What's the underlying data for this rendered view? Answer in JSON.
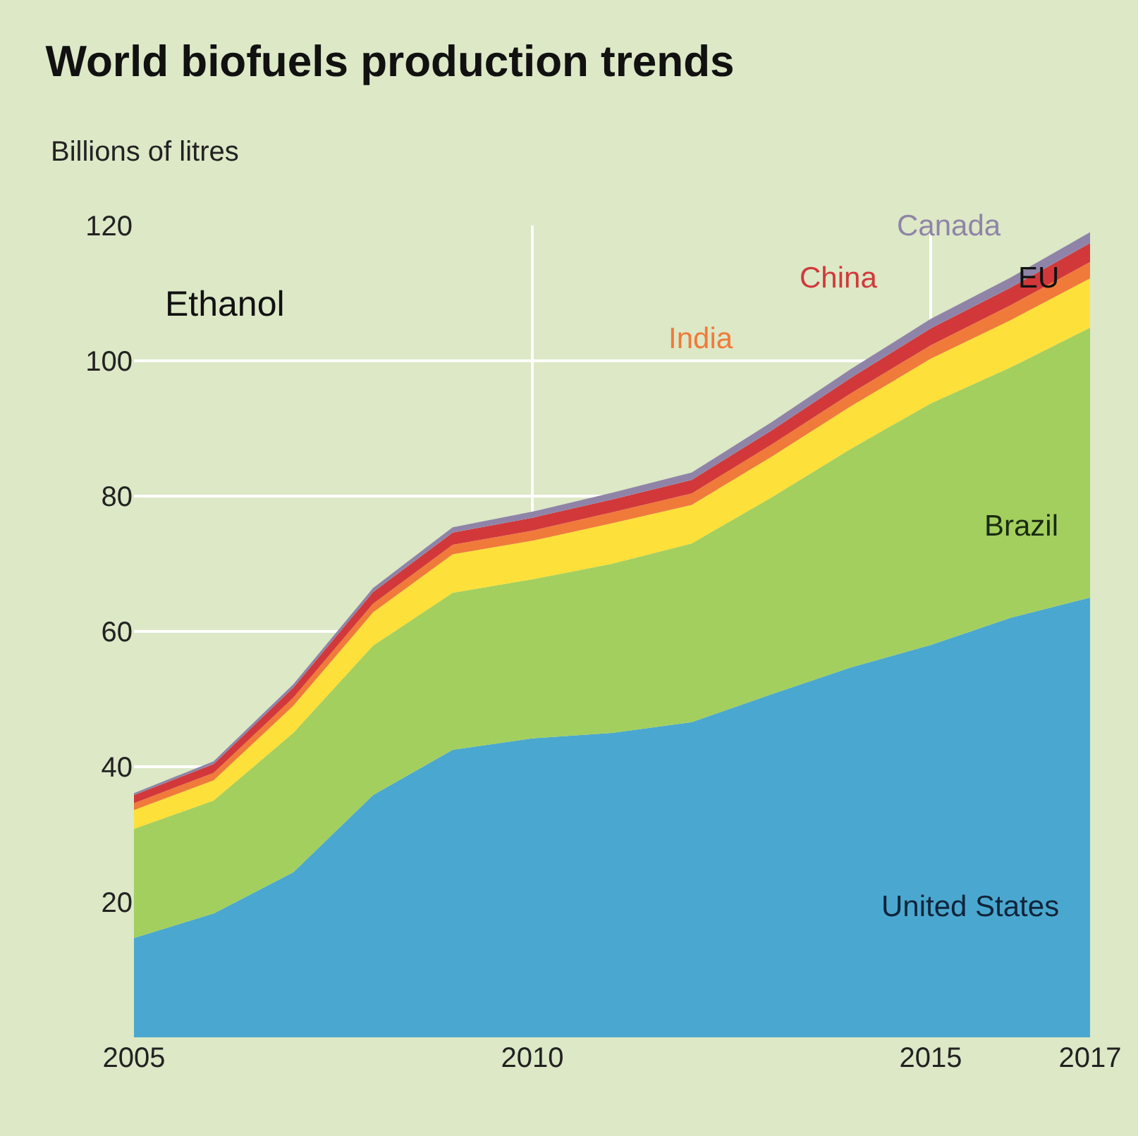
{
  "chart_data": {
    "type": "area",
    "stacked": true,
    "title": "World biofuels production trends",
    "ylabel": "Billions of litres",
    "annotations": [
      "Ethanol"
    ],
    "x": [
      2005,
      2006,
      2007,
      2008,
      2009,
      2010,
      2011,
      2012,
      2013,
      2014,
      2015,
      2016,
      2017
    ],
    "series": [
      {
        "name": "United States",
        "color": "#4aa8d0",
        "values": [
          14.7,
          18.3,
          24.4,
          35.8,
          42.5,
          44.2,
          45,
          46.6,
          50.7,
          54.7,
          58,
          62,
          65
        ]
      },
      {
        "name": "Brazil",
        "color": "#a3cf5f",
        "values": [
          16.1,
          16.7,
          20.6,
          22.1,
          23.2,
          23.5,
          25,
          26.4,
          29.1,
          32.3,
          35.7,
          37,
          39.9
        ]
      },
      {
        "name": "EU",
        "color": "#fde03a",
        "values": [
          2.8,
          3,
          4,
          4.9,
          5.7,
          5.7,
          6,
          5.7,
          6,
          6.3,
          6.6,
          7,
          7.3
        ]
      },
      {
        "name": "India",
        "color": "#f07a3a",
        "values": [
          1,
          1.1,
          1.2,
          1.3,
          1.4,
          1.5,
          1.6,
          1.7,
          1.8,
          1.9,
          2,
          2.2,
          2.4
        ]
      },
      {
        "name": "China",
        "color": "#d2383a",
        "values": [
          1.2,
          1.3,
          1.5,
          1.7,
          1.8,
          1.9,
          1.9,
          2,
          2.1,
          2.3,
          2.5,
          2.6,
          2.8
        ]
      },
      {
        "name": "Canada",
        "color": "#8f84a8",
        "values": [
          0.3,
          0.4,
          0.5,
          0.6,
          0.8,
          0.9,
          1,
          1.1,
          1.2,
          1.3,
          1.4,
          1.5,
          1.6
        ]
      }
    ],
    "xlim": [
      2005,
      2017
    ],
    "xticks": [
      2005,
      2010,
      2015,
      2017
    ],
    "ylim": [
      0,
      120
    ],
    "yticks": [
      20,
      40,
      60,
      80,
      100,
      120
    ],
    "grid": true,
    "legend": false
  }
}
